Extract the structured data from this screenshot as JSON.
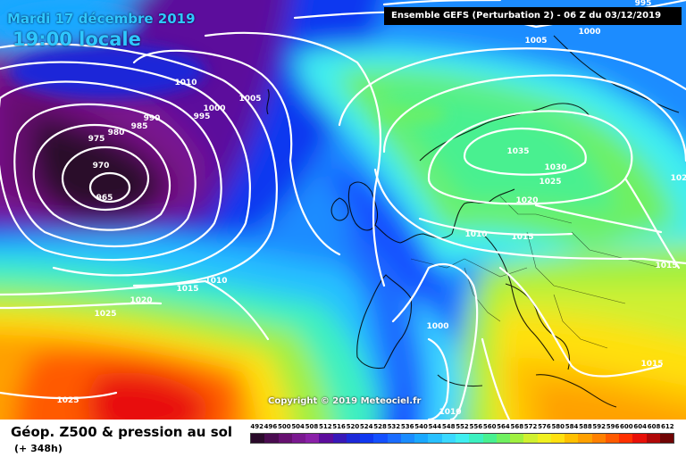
{
  "map": {
    "date_text": "Mardi 17 décembre 2019",
    "time_text": "19:00 locale",
    "model_text": "Ensemble GEFS  (Perturbation 2)  -  06 Z du 03/12/2019",
    "copyright": "Copyright © 2019 Meteociel.fr",
    "isobar_labels": [
      "995",
      "1000",
      "1005",
      "1010",
      "1005",
      "1000",
      "995",
      "990",
      "985",
      "980",
      "975",
      "970",
      "965",
      "1035",
      "1030",
      "1025",
      "1020",
      "1010",
      "1015",
      "1015",
      "1015",
      "1010",
      "1020",
      "1025",
      "1000",
      "1015",
      "1025",
      "1010",
      "102"
    ]
  },
  "footer": {
    "parameter_title": "Géop. Z500 & pression au sol",
    "lead_time": "(+ 348h)",
    "scale_values": [
      "492",
      "496",
      "500",
      "504",
      "508",
      "512",
      "516",
      "520",
      "524",
      "528",
      "532",
      "536",
      "540",
      "544",
      "548",
      "552",
      "556",
      "560",
      "564",
      "568",
      "572",
      "576",
      "580",
      "584",
      "588",
      "592",
      "596",
      "600",
      "604",
      "608",
      "612"
    ],
    "scale_colors": [
      "#2a0a2a",
      "#4a0c50",
      "#661070",
      "#7a1890",
      "#8a20a8",
      "#5c0c9c",
      "#3818b8",
      "#1c28d8",
      "#1038f0",
      "#1450ff",
      "#1a6cff",
      "#1a8cff",
      "#1aa8ff",
      "#28c0ff",
      "#3ad8ff",
      "#40eef0",
      "#3cf0c0",
      "#48f090",
      "#70f060",
      "#a0f040",
      "#d0f030",
      "#f0f020",
      "#ffe010",
      "#ffc000",
      "#ffa000",
      "#ff8000",
      "#ff5a00",
      "#ff3000",
      "#e81008",
      "#b00808",
      "#700404"
    ]
  }
}
